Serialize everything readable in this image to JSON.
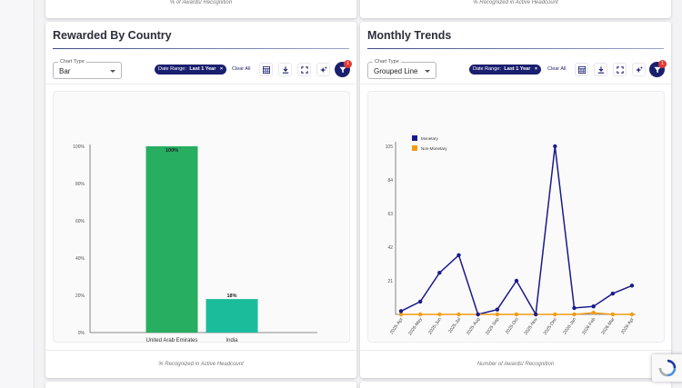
{
  "top_cards": {
    "left_caption": "% of Awards/ Recognition",
    "right_caption": "% Recognized in Active Headcount"
  },
  "left_card": {
    "title": "Rewarded By Country",
    "chart_type_label": "Chart Type",
    "chart_type_value": "Bar",
    "chip_label": "Date Range:",
    "chip_value": "Last 1 Year",
    "chip_close": "×",
    "clear_all": "Clear All",
    "filter_badge": "1",
    "footer_caption": "% Recognized in Active Headcount",
    "icons": [
      "table-icon",
      "download-icon",
      "fullscreen-icon",
      "sparkle-icon",
      "filter-icon"
    ]
  },
  "right_card": {
    "title": "Monthly Trends",
    "chart_type_label": "Chart Type",
    "chart_type_value": "Grouped Line",
    "chip_label": "Date Range:",
    "chip_value": "Last 1 Year",
    "chip_close": "×",
    "clear_all": "Clear All",
    "filter_badge": "1",
    "footer_caption": "Number of Awards/ Recognition",
    "icons": [
      "table-icon",
      "download-icon",
      "fullscreen-icon",
      "sparkle-icon",
      "filter-icon"
    ]
  },
  "chart_data": [
    {
      "type": "bar",
      "categories": [
        "United Arab Emirates",
        "India"
      ],
      "values": [
        100,
        18
      ],
      "value_labels": [
        "100%",
        "18%"
      ],
      "colors": [
        "#27ae60",
        "#1abc9c"
      ],
      "yticks": [
        "0%",
        "20%",
        "40%",
        "60%",
        "80%",
        "100%"
      ],
      "ylim": [
        0,
        100
      ],
      "grid": false
    },
    {
      "type": "line",
      "categories": [
        "2025-Apr",
        "2025-May",
        "2025-Jun",
        "2025-Jul",
        "2025-Aug",
        "2025-Sep",
        "2025-Oct",
        "2025-Nov",
        "2025-Dec",
        "2026-Jan",
        "2026-Feb",
        "2026-Mar",
        "2026-Apr"
      ],
      "series": [
        {
          "name": "Monetary",
          "color": "#1a1a8c",
          "values": [
            2,
            8,
            26,
            37,
            0,
            3,
            21,
            0,
            105,
            4,
            5,
            13,
            18
          ]
        },
        {
          "name": "Non-Monetary",
          "color": "#f39c12",
          "values": [
            0,
            0,
            0,
            0,
            0,
            0,
            0,
            0,
            0,
            0,
            1,
            0,
            0
          ]
        }
      ],
      "yticks": [
        "0",
        "21",
        "42",
        "63",
        "84",
        "105"
      ],
      "ylim": [
        0,
        105
      ],
      "legend_position": "top-left",
      "grid": false
    }
  ]
}
